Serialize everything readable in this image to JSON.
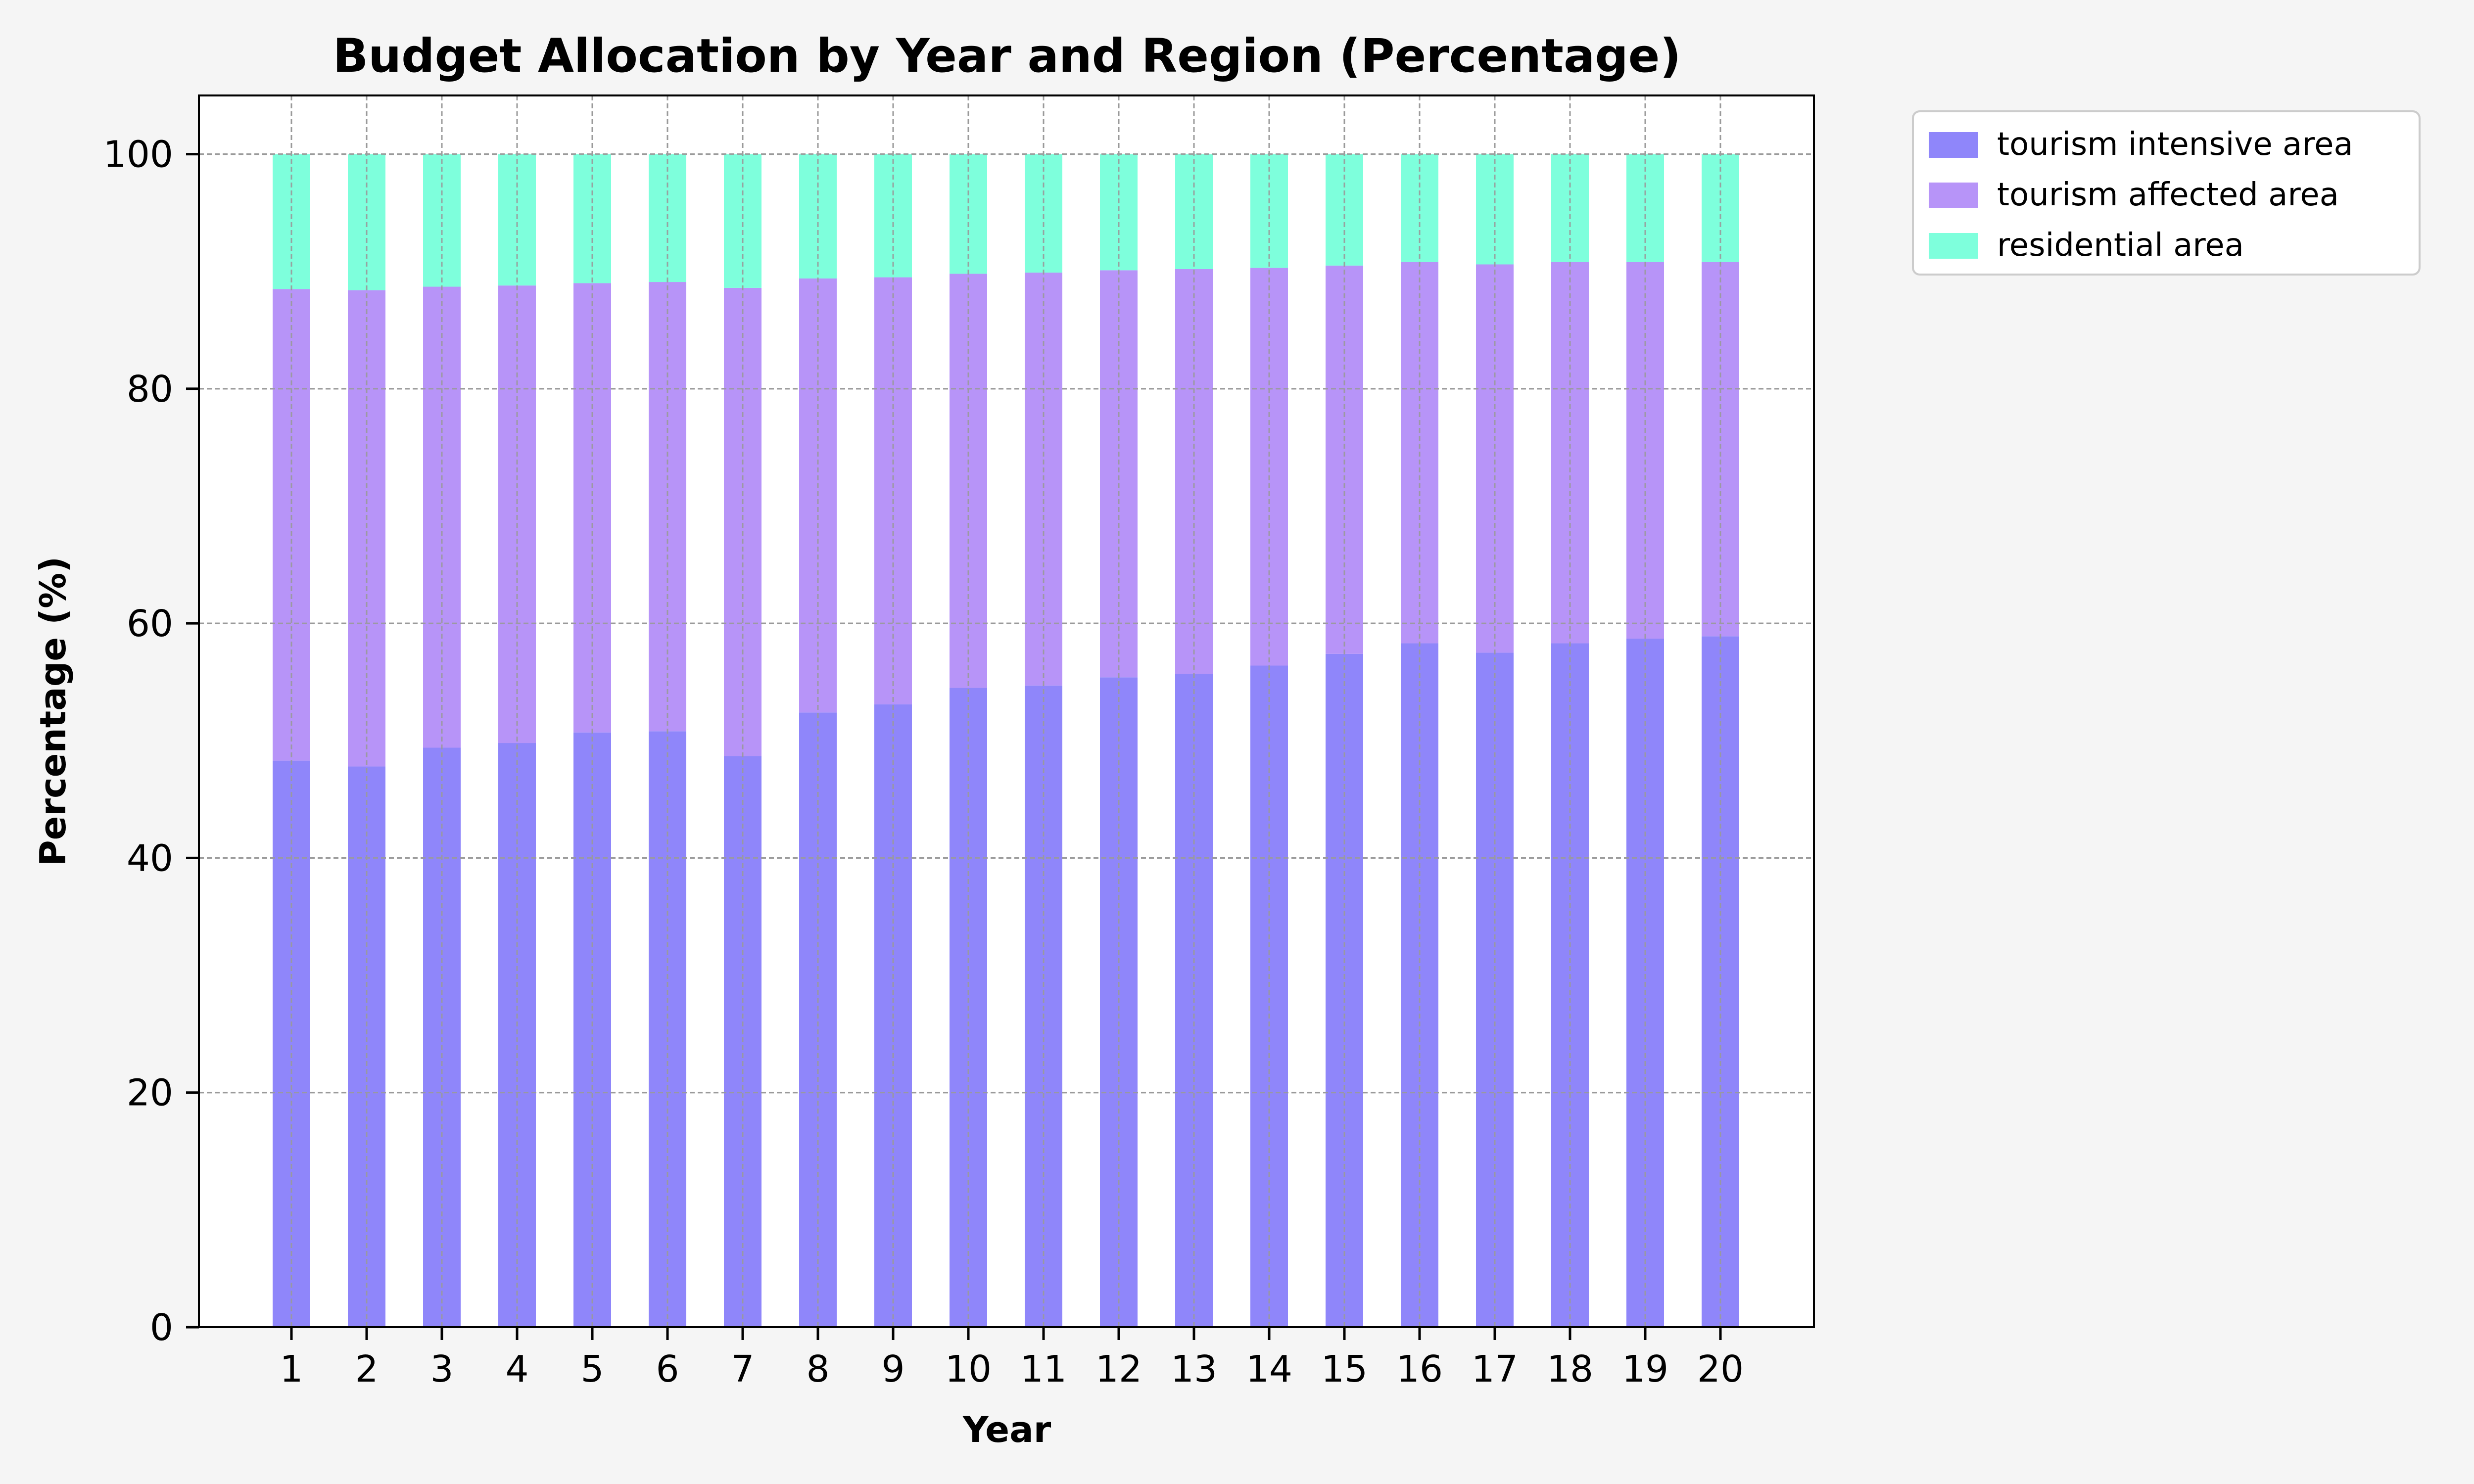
{
  "chart_data": {
    "type": "bar",
    "stacked": true,
    "title": "Budget Allocation by Year and Region (Percentage)",
    "xlabel": "Year",
    "ylabel": "Percentage (%)",
    "ylim": [
      0,
      105
    ],
    "yticks": [
      0,
      20,
      40,
      60,
      80,
      100
    ],
    "grid": true,
    "legend_position": "outside-top-right",
    "categories": [
      "1",
      "2",
      "3",
      "4",
      "5",
      "6",
      "7",
      "8",
      "9",
      "10",
      "11",
      "12",
      "13",
      "14",
      "15",
      "16",
      "17",
      "18",
      "19",
      "20"
    ],
    "series": [
      {
        "name": "tourism intensive area",
        "color": "#8f86fa",
        "values": [
          48.3,
          47.8,
          49.4,
          49.8,
          50.7,
          50.8,
          48.7,
          52.4,
          53.1,
          54.5,
          54.7,
          55.4,
          55.7,
          56.4,
          57.4,
          58.3,
          57.5,
          58.3,
          58.7,
          58.9
        ]
      },
      {
        "name": "tourism affected area",
        "color": "#b794f8",
        "values": [
          40.2,
          40.6,
          39.3,
          39.0,
          38.3,
          38.3,
          39.9,
          37.0,
          36.4,
          35.3,
          35.2,
          34.7,
          34.5,
          33.9,
          33.1,
          32.5,
          33.1,
          32.5,
          32.1,
          31.9
        ]
      },
      {
        "name": "residential area",
        "color": "#7effdc",
        "values": [
          11.5,
          11.6,
          11.3,
          11.2,
          11.0,
          10.9,
          11.4,
          10.6,
          10.5,
          10.2,
          10.1,
          9.9,
          9.8,
          9.7,
          9.5,
          9.2,
          9.4,
          9.2,
          9.2,
          9.2
        ]
      }
    ]
  }
}
